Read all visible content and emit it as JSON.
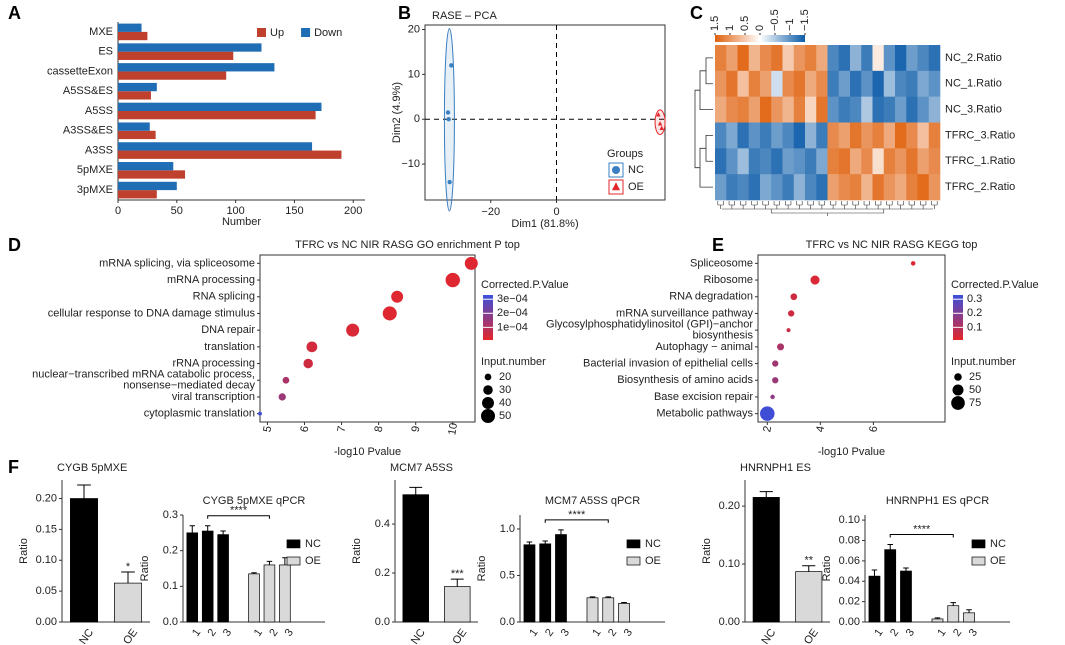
{
  "chart_data": [
    {
      "type": "bar",
      "orientation": "horizontal",
      "panel": "A",
      "xlabel": "Number",
      "categories": [
        "MXE",
        "ES",
        "cassetteExon",
        "A5SS&ES",
        "A5SS",
        "A3SS&ES",
        "A3SS",
        "5pMXE",
        "3pMXE"
      ],
      "series": [
        {
          "name": "Up",
          "color": "#c0402e",
          "values": [
            25,
            98,
            92,
            28,
            168,
            32,
            190,
            57,
            33
          ]
        },
        {
          "name": "Down",
          "color": "#1f6db4",
          "values": [
            20,
            122,
            133,
            33,
            173,
            27,
            165,
            47,
            50
          ]
        }
      ],
      "xlim": [
        0,
        210
      ],
      "xticks": [
        0,
        50,
        100,
        150,
        200
      ],
      "legend": "top-right"
    },
    {
      "type": "scatter",
      "panel": "B",
      "title": "RASE – PCA",
      "xlabel": "Dim1 (81.8%)",
      "ylabel": "Dim2 (4.9%)",
      "series": [
        {
          "name": "NC",
          "color": "#3a7fc1",
          "marker": "circle",
          "x": [
            -32,
            -33,
            -32.8,
            -32.5
          ],
          "y": [
            12,
            1.5,
            0,
            -14
          ]
        },
        {
          "name": "OE",
          "color": "#e3262b",
          "marker": "triangle",
          "x": [
            31,
            31.5,
            32
          ],
          "y": [
            1,
            -1,
            -2
          ]
        }
      ],
      "xlim": [
        -40,
        33
      ],
      "ylim": [
        -18,
        21
      ],
      "xticks": [
        {
          "value": -20,
          "label": "−20"
        },
        0
      ],
      "yticks": [
        {
          "value": -10,
          "label": "−10"
        },
        0,
        10,
        20
      ],
      "zero_lines": true,
      "legend_title": "Groups",
      "legend": "bottom-right"
    },
    {
      "type": "heatmap",
      "panel": "C",
      "rows": [
        "NC_2.Ratio",
        "NC_1.Ratio",
        "NC_3.Ratio",
        "TFRC_3.Ratio",
        "TFRC_1.Ratio",
        "TFRC_2.Ratio"
      ],
      "values": [
        [
          1.2,
          0.9,
          1.4,
          0.7,
          1.1,
          1.3,
          0.5,
          1.0,
          1.2,
          0.8,
          -1.1,
          -1.3,
          -0.7,
          -1.2,
          0.2,
          -1.0,
          -1.4,
          -0.9,
          -1.1,
          -1.3
        ],
        [
          1.0,
          1.3,
          0.6,
          1.2,
          0.9,
          -0.3,
          1.1,
          1.3,
          0.8,
          1.1,
          -1.2,
          -0.9,
          -1.3,
          -1.0,
          -1.4,
          -0.6,
          -1.1,
          -1.2,
          -0.8,
          -1.0
        ],
        [
          0.8,
          1.1,
          1.2,
          0.9,
          1.4,
          1.0,
          0.7,
          1.2,
          0.4,
          1.3,
          -1.0,
          -1.2,
          -1.1,
          -0.5,
          -1.3,
          -1.2,
          -0.9,
          -1.3,
          -1.0,
          -0.7
        ],
        [
          -1.1,
          -0.8,
          -1.3,
          -1.0,
          -1.2,
          -0.9,
          -1.1,
          -1.4,
          -0.7,
          -1.2,
          1.1,
          0.9,
          1.3,
          1.0,
          1.2,
          0.8,
          1.4,
          1.1,
          0.6,
          1.2
        ],
        [
          -1.3,
          -1.0,
          -0.6,
          -1.2,
          -1.1,
          -1.3,
          -0.9,
          -1.0,
          -1.2,
          -0.8,
          1.2,
          1.3,
          0.8,
          1.1,
          0.3,
          1.2,
          1.0,
          1.3,
          0.9,
          1.1
        ],
        [
          -0.9,
          -1.2,
          -1.1,
          -1.3,
          -0.8,
          -1.0,
          -1.2,
          -0.7,
          -1.1,
          -1.3,
          0.9,
          1.1,
          1.2,
          0.7,
          1.3,
          1.0,
          0.8,
          1.2,
          1.4,
          1.0
        ]
      ],
      "colors": [
        "#0b5ba8",
        "#ffffff",
        "#e0600c"
      ],
      "clim": [
        -1.5,
        1.5
      ],
      "cticks": [
        1.5,
        1,
        0.5,
        0,
        {
          "value": -0.5,
          "label": "−0.5"
        },
        {
          "value": -1,
          "label": "−1"
        },
        {
          "value": -1.5,
          "label": "−1.5"
        }
      ]
    },
    {
      "type": "dot",
      "panel": "D",
      "title": "TFRC vs NC NIR RASG GO enrichment P top",
      "xlabel": "-log10 Pvalue",
      "categories": [
        "mRNA splicing, via spliceosome",
        "mRNA processing",
        "RNA splicing",
        "cellular response to DNA damage stimulus",
        "DNA repair",
        "translation",
        "rRNA processing",
        [
          "nuclear−transcribed mRNA catabolic process,",
          "nonsense−mediated decay"
        ],
        "viral transcription",
        "cytoplasmic translation"
      ],
      "x": [
        10.5,
        10.0,
        8.5,
        8.3,
        7.3,
        6.2,
        6.1,
        5.5,
        5.4,
        4.8
      ],
      "sizes": [
        45,
        52,
        40,
        50,
        45,
        35,
        30,
        20,
        22,
        12
      ],
      "pvalues": [
        2e-05,
        2e-05,
        2e-05,
        2e-05,
        3e-05,
        4e-05,
        5e-05,
        0.00012,
        0.00015,
        0.00032
      ],
      "xlim": [
        4.8,
        10.6
      ],
      "xticks": [
        5,
        6,
        7,
        8,
        9,
        10
      ],
      "color_title": "Corrected.P.Value",
      "colors": [
        "#e3262b",
        "#3b4fdc"
      ],
      "colorlim": [
        1e-05,
        0.00033
      ],
      "color_ticks": [
        {
          "value": 0.0003,
          "label": "3e−04"
        },
        {
          "value": 0.0002,
          "label": "2e−04"
        },
        {
          "value": 0.0001,
          "label": "1e−04"
        }
      ],
      "size_title": "Input.number",
      "size_lim": [
        10,
        55
      ],
      "size_ticks": [
        20,
        30,
        40,
        50
      ]
    },
    {
      "type": "dot",
      "panel": "E",
      "title": "TFRC vs NC NIR RASG KEGG top",
      "xlabel": "-log10 Pvalue",
      "categories": [
        "Spliceosome",
        "Ribosome",
        "RNA degradation",
        "mRNA surveillance pathway",
        [
          "Glycosylphosphatidylinositol (GPI)−anchor",
          "biosynthesis"
        ],
        "Autophagy − animal",
        "Bacterial invasion of epithelial cells",
        "Biosynthesis of amino acids",
        "Base excision repair",
        "Metabolic pathways"
      ],
      "x": [
        7.5,
        3.8,
        3.0,
        2.9,
        2.8,
        2.5,
        2.3,
        2.3,
        2.2,
        2.0
      ],
      "sizes": [
        10,
        35,
        20,
        18,
        8,
        22,
        18,
        18,
        10,
        85
      ],
      "pvalues": [
        0.02,
        0.03,
        0.05,
        0.05,
        0.06,
        0.12,
        0.14,
        0.15,
        0.17,
        0.32
      ],
      "xlim": [
        1.65,
        8.7
      ],
      "xticks": [
        2,
        4,
        6
      ],
      "color_title": "Corrected.P.Value",
      "colors": [
        "#e3262b",
        "#3b4fdc"
      ],
      "colorlim": [
        0.01,
        0.33
      ],
      "color_ticks": [
        0.3,
        0.2,
        0.1
      ],
      "size_title": "Input.number",
      "size_lim": [
        5,
        90
      ],
      "size_ticks": [
        25,
        50,
        75
      ]
    },
    {
      "type": "bar",
      "panel": "F",
      "title": "CYGB 5pMXE",
      "ylabel": "Ratio",
      "categories": [
        "NC",
        "OE"
      ],
      "values": [
        0.2,
        0.063
      ],
      "errors": [
        0.022,
        0.018
      ],
      "colors": [
        "#000000",
        "#d9d9d9"
      ],
      "annotations": [
        {
          "index": 1,
          "text": "*"
        }
      ],
      "ylim": [
        0,
        0.23
      ],
      "yticks": [
        {
          "value": 0,
          "label": "0.00"
        },
        0.05,
        {
          "value": 0.1,
          "label": "0.10"
        },
        0.15,
        {
          "value": 0.2,
          "label": "0.20"
        }
      ]
    },
    {
      "type": "bar",
      "title": "CYGB 5pMXE qPCR",
      "ylabel": "Ratio",
      "categories": [
        "1",
        "2",
        "3"
      ],
      "series": [
        {
          "name": "NC",
          "color": "#000000",
          "values": [
            0.25,
            0.255,
            0.245
          ],
          "errors": [
            0.02,
            0.015,
            0.01
          ]
        },
        {
          "name": "OE",
          "color": "#d9d9d9",
          "values": [
            0.135,
            0.16,
            0.16
          ],
          "errors": [
            0.003,
            0.01,
            0.02
          ]
        }
      ],
      "annotation": "****",
      "legend": "right",
      "ylim": [
        0,
        0.3
      ],
      "yticks": [
        {
          "value": 0,
          "label": "0.0"
        },
        0.1,
        0.2,
        0.3
      ]
    },
    {
      "type": "bar",
      "title": "MCM7 A5SS",
      "ylabel": "Ratio",
      "categories": [
        "NC",
        "OE"
      ],
      "values": [
        0.52,
        0.145
      ],
      "errors": [
        0.03,
        0.03
      ],
      "colors": [
        "#000000",
        "#d9d9d9"
      ],
      "annotations": [
        {
          "index": 1,
          "text": "***"
        }
      ],
      "ylim": [
        0,
        0.58
      ],
      "yticks": [
        {
          "value": 0,
          "label": "0.0"
        },
        0.2,
        0.4
      ]
    },
    {
      "type": "bar",
      "title": "MCM7 A5SS qPCR",
      "ylabel": "Ratio",
      "categories": [
        "1",
        "2",
        "3"
      ],
      "series": [
        {
          "name": "NC",
          "color": "#000000",
          "values": [
            0.83,
            0.84,
            0.94
          ],
          "errors": [
            0.03,
            0.03,
            0.05
          ]
        },
        {
          "name": "OE",
          "color": "#d9d9d9",
          "values": [
            0.26,
            0.26,
            0.2
          ],
          "errors": [
            0.01,
            0.01,
            0.01
          ]
        }
      ],
      "annotation": "****",
      "legend": "right",
      "ylim": [
        0,
        1.15
      ],
      "yticks": [
        {
          "value": 0,
          "label": "0.0"
        },
        0.5,
        {
          "value": 1,
          "label": "1.0"
        }
      ]
    },
    {
      "type": "bar",
      "title": "HNRNPH1 ES",
      "ylabel": "Ratio",
      "categories": [
        "NC",
        "OE"
      ],
      "values": [
        0.215,
        0.087
      ],
      "errors": [
        0.01,
        0.01
      ],
      "colors": [
        "#000000",
        "#d9d9d9"
      ],
      "annotations": [
        {
          "index": 1,
          "text": "**"
        }
      ],
      "ylim": [
        0,
        0.245
      ],
      "yticks": [
        {
          "value": 0,
          "label": "0.00"
        },
        {
          "value": 0.1,
          "label": "0.10"
        },
        {
          "value": 0.2,
          "label": "0.20"
        }
      ]
    },
    {
      "type": "bar",
      "title": "HNRNPH1 ES qPCR",
      "ylabel": "Ratio",
      "categories": [
        "1",
        "2",
        "3"
      ],
      "series": [
        {
          "name": "NC",
          "color": "#000000",
          "values": [
            0.045,
            0.071,
            0.05
          ],
          "errors": [
            0.006,
            0.005,
            0.003
          ]
        },
        {
          "name": "OE",
          "color": "#d9d9d9",
          "values": [
            0.003,
            0.016,
            0.009
          ],
          "errors": [
            0.001,
            0.003,
            0.003
          ]
        }
      ],
      "annotation": "****",
      "legend": "right",
      "ylim": [
        0,
        0.105
      ],
      "yticks": [
        {
          "value": 0,
          "label": "0.00"
        },
        0.02,
        0.04,
        0.06,
        0.08,
        {
          "value": 0.1,
          "label": "0.10"
        }
      ]
    }
  ]
}
